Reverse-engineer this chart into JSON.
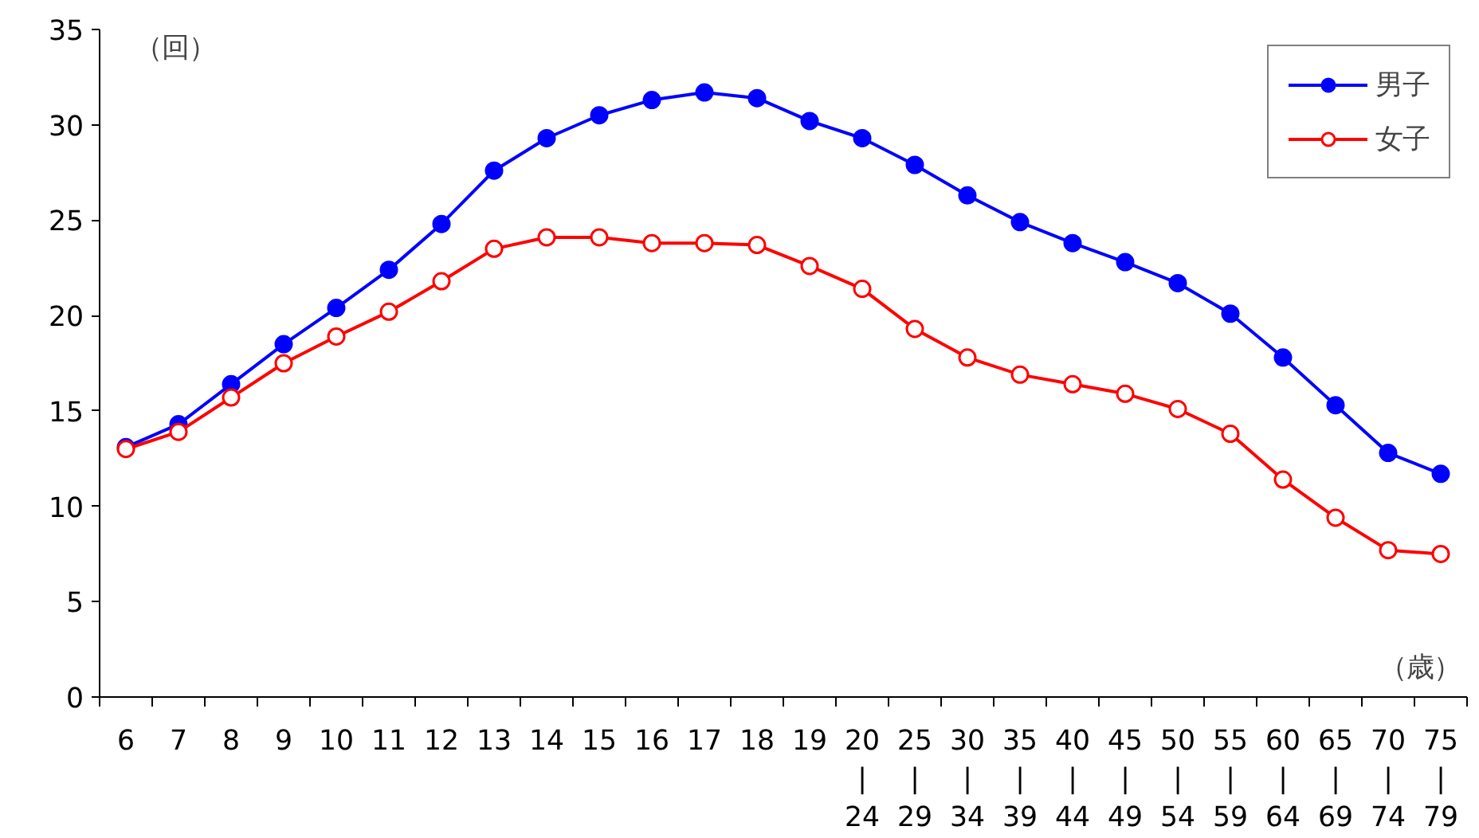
{
  "chart_data": {
    "type": "line",
    "ylabel": "（回）",
    "xlabel": "（歳）",
    "categories": [
      "6",
      "7",
      "8",
      "9",
      "10",
      "11",
      "12",
      "13",
      "14",
      "15",
      "16",
      "17",
      "18",
      "19",
      "20\n|\n24",
      "25\n|\n29",
      "30\n|\n34",
      "35\n|\n39",
      "40\n|\n44",
      "45\n|\n49",
      "50\n|\n54",
      "55\n|\n59",
      "60\n|\n64",
      "65\n|\n69",
      "70\n|\n74",
      "75\n|\n79"
    ],
    "series": [
      {
        "name": "男子",
        "color": "#0000ff",
        "marker": "circle",
        "values": [
          13.1,
          14.3,
          16.4,
          18.5,
          20.4,
          22.4,
          24.8,
          27.6,
          29.3,
          30.5,
          31.3,
          31.7,
          31.4,
          30.2,
          29.3,
          27.9,
          26.3,
          24.9,
          23.8,
          22.8,
          21.7,
          20.1,
          17.8,
          15.3,
          12.8,
          11.7
        ]
      },
      {
        "name": "女子",
        "color": "#ff0000",
        "marker": "open_circle",
        "values": [
          13.0,
          13.9,
          15.7,
          17.5,
          18.9,
          20.2,
          21.8,
          23.5,
          24.1,
          24.1,
          23.8,
          23.8,
          23.7,
          22.6,
          21.4,
          19.3,
          17.8,
          16.9,
          16.4,
          15.9,
          15.1,
          13.8,
          11.4,
          9.4,
          7.7,
          7.5
        ]
      }
    ],
    "ylim": [
      0,
      35
    ],
    "yticks": [
      0,
      5,
      10,
      15,
      20,
      25,
      30,
      35
    ],
    "grid": false,
    "legend": "top right",
    "line_style": "solid"
  }
}
